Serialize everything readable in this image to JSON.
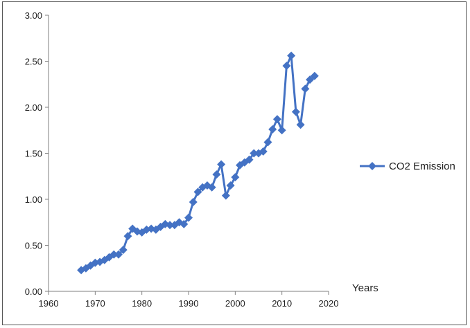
{
  "chart_data": {
    "type": "line",
    "title": "",
    "xlabel": "Years",
    "ylabel": "",
    "xlim": [
      1960,
      2020
    ],
    "ylim": [
      0,
      3
    ],
    "x_ticks": [
      "1960",
      "1970",
      "1980",
      "1990",
      "2000",
      "2010",
      "2020"
    ],
    "y_ticks": [
      "0.00",
      "0.50",
      "1.00",
      "1.50",
      "2.00",
      "2.50",
      "3.00"
    ],
    "grid": false,
    "legend_position": "right",
    "series": [
      {
        "name": "CO2 Emission",
        "color": "#4472C4",
        "marker": "diamond",
        "x": [
          1967,
          1968,
          1969,
          1970,
          1971,
          1972,
          1973,
          1974,
          1975,
          1976,
          1977,
          1978,
          1979,
          1980,
          1981,
          1982,
          1983,
          1984,
          1985,
          1986,
          1987,
          1988,
          1989,
          1990,
          1991,
          1992,
          1993,
          1994,
          1995,
          1996,
          1997,
          1998,
          1999,
          2000,
          2001,
          2002,
          2003,
          2004,
          2005,
          2006,
          2007,
          2008,
          2009,
          2010,
          2011,
          2012,
          2013,
          2014,
          2015,
          2016,
          2017
        ],
        "y": [
          0.23,
          0.25,
          0.28,
          0.31,
          0.32,
          0.34,
          0.37,
          0.4,
          0.4,
          0.45,
          0.6,
          0.68,
          0.65,
          0.64,
          0.67,
          0.68,
          0.67,
          0.7,
          0.73,
          0.72,
          0.72,
          0.75,
          0.73,
          0.8,
          0.97,
          1.08,
          1.13,
          1.15,
          1.13,
          1.27,
          1.38,
          1.04,
          1.15,
          1.24,
          1.37,
          1.4,
          1.43,
          1.5,
          1.5,
          1.52,
          1.62,
          1.76,
          1.87,
          1.75,
          2.45,
          2.56,
          1.95,
          1.81,
          2.2,
          2.3,
          2.34
        ]
      }
    ]
  }
}
